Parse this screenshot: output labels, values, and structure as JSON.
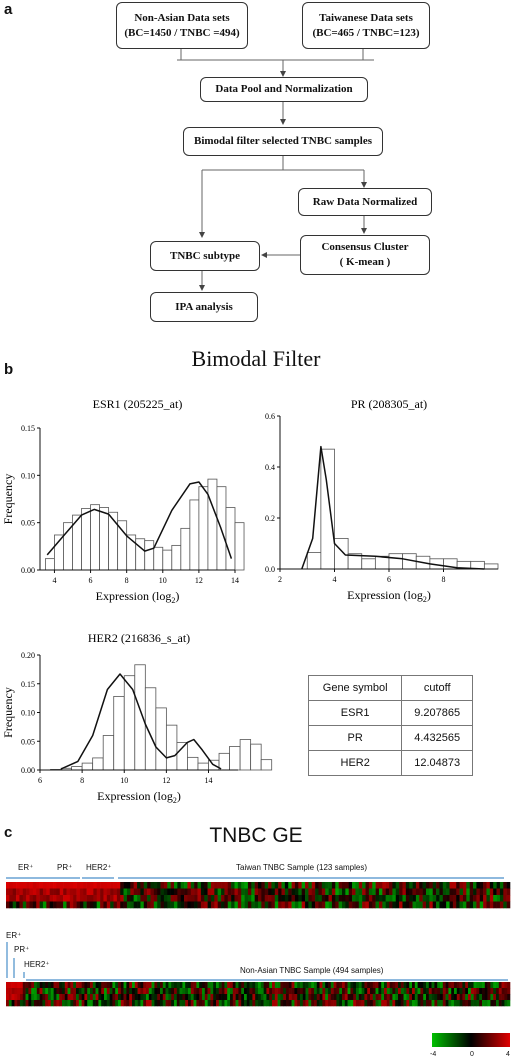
{
  "panels": {
    "a": "a",
    "b": "b",
    "c": "c"
  },
  "flowchart": {
    "non_asian": [
      "Non-Asian Data sets",
      "(BC=1450 / TNBC =494)"
    ],
    "taiwanese": [
      "Taiwanese Data sets",
      "(BC=465 / TNBC=123)"
    ],
    "pool": "Data Pool and Normalization",
    "bimodal": "Bimodal filter selected TNBC samples",
    "raw": "Raw Data Normalized",
    "consensus": [
      "Consensus Cluster",
      "( K-mean )"
    ],
    "subtype": "TNBC subtype",
    "ipa": "IPA analysis"
  },
  "bimodal_title": "Bimodal Filter",
  "chart_data": [
    {
      "type": "bar",
      "title": "ESR1 (205225_at)",
      "xlabel": "Expression (log2)",
      "ylabel": "Frequency",
      "xlim": [
        3.2,
        14
      ],
      "ylim": [
        0,
        0.15
      ],
      "xticks": [
        4,
        6,
        8,
        10,
        12,
        14
      ],
      "yticks": [
        0.0,
        0.05,
        0.1,
        0.15
      ],
      "ytick_labels": [
        "0.00",
        "0.05",
        "0.10",
        "0.15"
      ],
      "bin_start": 3.5,
      "bin_width": 0.5,
      "values": [
        0.012,
        0.037,
        0.05,
        0.058,
        0.065,
        0.069,
        0.066,
        0.061,
        0.052,
        0.037,
        0.033,
        0.031,
        0.024,
        0.021,
        0.026,
        0.044,
        0.074,
        0.088,
        0.096,
        0.088,
        0.066,
        0.05
      ],
      "fit_curve": [
        [
          3.6,
          0.016
        ],
        [
          4.5,
          0.036
        ],
        [
          5.5,
          0.058
        ],
        [
          6.2,
          0.064
        ],
        [
          7.0,
          0.059
        ],
        [
          8.0,
          0.036
        ],
        [
          9.0,
          0.02
        ],
        [
          9.5,
          0.023
        ],
        [
          10.5,
          0.063
        ],
        [
          11.5,
          0.091
        ],
        [
          12.0,
          0.093
        ],
        [
          12.5,
          0.08
        ],
        [
          13.2,
          0.045
        ],
        [
          13.8,
          0.012
        ]
      ]
    },
    {
      "type": "bar",
      "title": "PR (208305_at)",
      "xlabel": "Expression (log2)",
      "ylabel": "",
      "xlim": [
        2,
        10
      ],
      "ylim": [
        0,
        0.6
      ],
      "xticks": [
        2,
        4,
        6,
        8
      ],
      "yticks": [
        0.0,
        0.2,
        0.4,
        0.6
      ],
      "ytick_labels": [
        "0.0",
        "0.2",
        "0.4",
        "0.6"
      ],
      "bin_start": 3.0,
      "bin_width": 0.5,
      "values": [
        0.065,
        0.47,
        0.12,
        0.06,
        0.04,
        0.05,
        0.06,
        0.06,
        0.05,
        0.04,
        0.04,
        0.03,
        0.03,
        0.02
      ],
      "fit_curve": [
        [
          2.8,
          0.0
        ],
        [
          3.2,
          0.12
        ],
        [
          3.5,
          0.48
        ],
        [
          3.7,
          0.35
        ],
        [
          4.0,
          0.1
        ],
        [
          4.4,
          0.055
        ],
        [
          5.5,
          0.05
        ],
        [
          6.5,
          0.04
        ],
        [
          7.5,
          0.02
        ],
        [
          8.5,
          0.005
        ],
        [
          9.5,
          0.0
        ]
      ]
    },
    {
      "type": "bar",
      "title": "HER2 (216836_s_at)",
      "xlabel": "Expression (log2)",
      "ylabel": "Frequency",
      "xlim": [
        6,
        15.4
      ],
      "ylim": [
        0,
        0.2
      ],
      "xticks": [
        6,
        8,
        10,
        12,
        14
      ],
      "yticks": [
        0.0,
        0.05,
        0.1,
        0.15,
        0.2
      ],
      "ytick_labels": [
        "0.00",
        "0.05",
        "0.10",
        "0.15",
        "0.20"
      ],
      "bin_start": 6.5,
      "bin_width": 0.5,
      "values": [
        0.001,
        0.003,
        0.006,
        0.012,
        0.021,
        0.06,
        0.128,
        0.164,
        0.183,
        0.143,
        0.108,
        0.078,
        0.048,
        0.022,
        0.012,
        0.017,
        0.029,
        0.041,
        0.053,
        0.045,
        0.018
      ],
      "fit_curve": [
        [
          7.0,
          0.002
        ],
        [
          7.8,
          0.015
        ],
        [
          8.5,
          0.06
        ],
        [
          9.2,
          0.14
        ],
        [
          9.8,
          0.167
        ],
        [
          10.4,
          0.14
        ],
        [
          11.0,
          0.08
        ],
        [
          11.5,
          0.04
        ],
        [
          12.0,
          0.021
        ],
        [
          12.4,
          0.025
        ],
        [
          13.0,
          0.048
        ],
        [
          13.3,
          0.053
        ],
        [
          13.7,
          0.035
        ],
        [
          14.2,
          0.01
        ],
        [
          14.6,
          0.002
        ]
      ]
    }
  ],
  "cutoff_table": {
    "headers": [
      "Gene symbol",
      "cutoff"
    ],
    "rows": [
      [
        "ESR1",
        "9.207865"
      ],
      [
        "PR",
        "4.432565"
      ],
      [
        "HER2",
        "12.04873"
      ]
    ]
  },
  "heatmap": {
    "title": "TNBC GE",
    "taiwan": {
      "er": "ER⁺",
      "pr": "PR⁺",
      "her2": "HER2⁺",
      "sample": "Taiwan TNBC Sample (123 samples)"
    },
    "nonasian": {
      "er": "ER⁺",
      "pr": "PR⁺",
      "her2": "HER2⁺",
      "sample": "Non-Asian TNBC Sample (494 samples)"
    },
    "colorbar": {
      "min": "-4",
      "mid": "0",
      "max": "4",
      "low_color": "#00c000",
      "mid_color": "#000000",
      "high_color": "#e00000"
    }
  },
  "colors": {
    "heat_green": "#00c000",
    "heat_red": "#e00000",
    "bracket_blue": "#4a8fc9"
  }
}
